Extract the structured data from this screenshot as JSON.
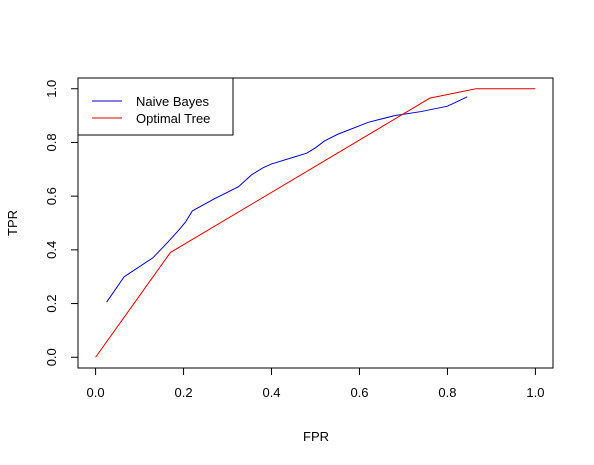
{
  "chart_data": {
    "type": "line",
    "title": "",
    "xlabel": "FPR",
    "ylabel": "TPR",
    "xlim": [
      -0.04,
      1.04
    ],
    "ylim": [
      -0.04,
      1.04
    ],
    "xticks": [
      0.0,
      0.2,
      0.4,
      0.6,
      0.8,
      1.0
    ],
    "xtick_labels": [
      "0.0",
      "0.2",
      "0.4",
      "0.6",
      "0.8",
      "1.0"
    ],
    "yticks": [
      0.0,
      0.2,
      0.4,
      0.6,
      0.8,
      1.0
    ],
    "ytick_labels": [
      "0.0",
      "0.2",
      "0.4",
      "0.6",
      "0.8",
      "1.0"
    ],
    "grid": false,
    "legend_position": "top-left",
    "series": [
      {
        "name": "Naive Bayes",
        "color": "#0000cc",
        "x": [
          0.025,
          0.065,
          0.13,
          0.165,
          0.19,
          0.205,
          0.22,
          0.27,
          0.325,
          0.355,
          0.38,
          0.4,
          0.45,
          0.48,
          0.5,
          0.52,
          0.55,
          0.62,
          0.68,
          0.74,
          0.8,
          0.845
        ],
        "y": [
          0.205,
          0.3,
          0.37,
          0.43,
          0.475,
          0.505,
          0.545,
          0.59,
          0.635,
          0.68,
          0.705,
          0.72,
          0.745,
          0.76,
          0.78,
          0.805,
          0.83,
          0.875,
          0.9,
          0.915,
          0.935,
          0.97
        ]
      },
      {
        "name": "Optimal Tree",
        "color": "#dd0000",
        "x": [
          0.0,
          0.17,
          0.76,
          0.865,
          1.0
        ],
        "y": [
          0.0,
          0.39,
          0.965,
          1.0,
          1.0
        ]
      }
    ]
  }
}
